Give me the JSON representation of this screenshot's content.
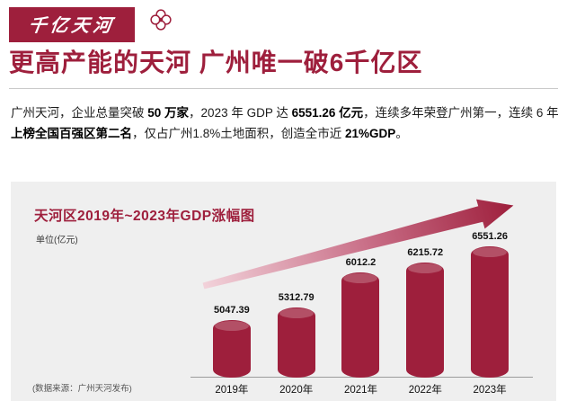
{
  "banner": {
    "label": "千亿天河"
  },
  "headline": "更高产能的天河 广州唯一破6千亿区",
  "paragraph": {
    "segments": [
      {
        "text": "广州天河，企业总量突破 ",
        "bold": false
      },
      {
        "text": "50 万家",
        "bold": true
      },
      {
        "text": "，2023 年 GDP 达 ",
        "bold": false
      },
      {
        "text": "6551.26 亿元",
        "bold": true
      },
      {
        "text": "，连续多年荣登广州第一，连续 6 年",
        "bold": false
      },
      {
        "text": "上榜全国百强区第二名",
        "bold": true
      },
      {
        "text": "，仅占广州1.8%土地面积，创造全市近 ",
        "bold": false
      },
      {
        "text": "21%GDP",
        "bold": true
      },
      {
        "text": "。",
        "bold": false
      }
    ]
  },
  "chart": {
    "title": "天河区2019年~2023年GDP涨幅图",
    "unit_label": "单位(亿元)",
    "source_note": "(数据来源：广州天河发布)"
  },
  "chart_data": {
    "type": "bar",
    "categories": [
      "2019年",
      "2020年",
      "2021年",
      "2022年",
      "2023年"
    ],
    "values": [
      5047.39,
      5312.79,
      6012.2,
      6215.72,
      6551.26
    ],
    "title": "天河区2019年~2023年GDP涨幅图",
    "xlabel": "",
    "ylabel": "单位(亿元)",
    "ylim": [
      5000,
      6600
    ],
    "grid": false,
    "legend": "none"
  },
  "colors": {
    "accent": "#9e1f3c",
    "bar": "#9e1f3c",
    "chart_background": "#efefef",
    "arrow_gradient_start": "#f2d2da",
    "arrow_gradient_end": "#9e1f3c"
  }
}
